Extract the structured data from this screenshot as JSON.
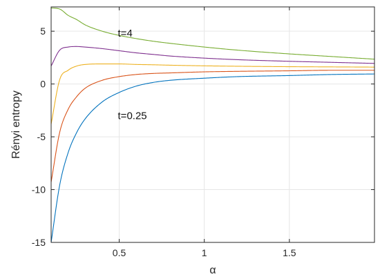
{
  "chart_data": {
    "type": "line",
    "title": "",
    "xlabel": "α",
    "ylabel": "Rényi entropy",
    "xlim": [
      0.1,
      2.0
    ],
    "ylim": [
      -15,
      7.3
    ],
    "grid": true,
    "legend": "none",
    "x_ticks": [
      {
        "value": 0.5,
        "label": "0.5"
      },
      {
        "value": 1.0,
        "label": "1"
      },
      {
        "value": 1.5,
        "label": "1.5"
      }
    ],
    "y_ticks": [
      {
        "value": 5,
        "label": "5"
      },
      {
        "value": 0,
        "label": "0"
      },
      {
        "value": -5,
        "label": "-5"
      },
      {
        "value": -10,
        "label": "-10"
      },
      {
        "value": -15,
        "label": "-15"
      }
    ],
    "x": [
      0.1,
      0.15,
      0.2,
      0.25,
      0.3,
      0.4,
      0.5,
      0.6,
      0.7,
      0.8,
      1.0,
      1.2,
      1.5,
      1.75,
      2.0
    ],
    "series": [
      {
        "color": "#0072bd",
        "values": [
          -15.0,
          -9.6,
          -6.5,
          -4.6,
          -3.3,
          -1.7,
          -0.8,
          -0.2,
          0.15,
          0.35,
          0.55,
          0.7,
          0.8,
          0.9,
          0.95
        ]
      },
      {
        "color": "#d95319",
        "values": [
          -9.3,
          -4.6,
          -2.4,
          -1.2,
          -0.4,
          0.35,
          0.7,
          0.9,
          1.0,
          1.05,
          1.15,
          1.2,
          1.25,
          1.3,
          1.3
        ]
      },
      {
        "color": "#edb120",
        "values": [
          -3.8,
          0.4,
          1.3,
          1.7,
          1.85,
          1.9,
          1.9,
          1.85,
          1.82,
          1.78,
          1.72,
          1.68,
          1.64,
          1.62,
          1.6
        ]
      },
      {
        "color": "#7e2f8e",
        "values": [
          1.7,
          3.2,
          3.5,
          3.55,
          3.5,
          3.35,
          3.15,
          2.95,
          2.8,
          2.65,
          2.45,
          2.3,
          2.15,
          2.05,
          1.95
        ]
      },
      {
        "color": "#77ac30",
        "values": [
          7.2,
          7.1,
          6.5,
          6.1,
          5.6,
          5.0,
          4.6,
          4.3,
          4.05,
          3.85,
          3.5,
          3.2,
          2.85,
          2.6,
          2.35
        ]
      }
    ],
    "annotations": [
      {
        "text": "t=4",
        "x": 0.5,
        "y": 4.8
      },
      {
        "text": "t=0.25",
        "x": 0.5,
        "y": -3.0
      }
    ]
  }
}
